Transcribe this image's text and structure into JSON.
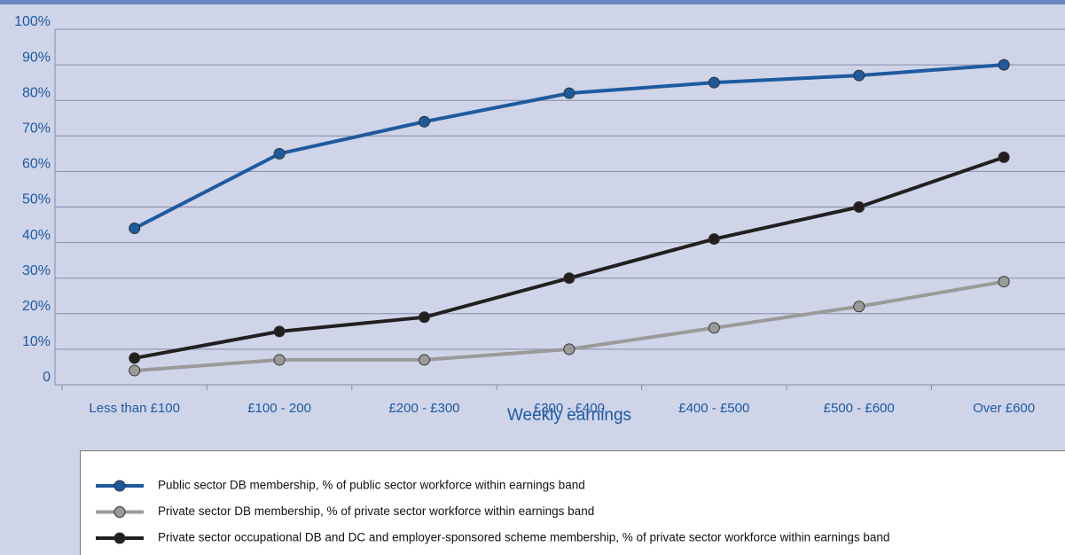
{
  "chart_data": {
    "type": "line",
    "x_label": "Weekly earnings",
    "categories": [
      "Less than £100",
      "£100 - 200",
      "£200 - £300",
      "£300 - £400",
      "£400 - £500",
      "£500 - £600",
      "Over £600"
    ],
    "series": [
      {
        "name": "Public sector DB membership, % of public sector workforce within earnings band",
        "color": "#1f5a9e",
        "values": [
          44,
          65,
          74,
          82,
          85,
          87,
          90
        ]
      },
      {
        "name": "Private sector DB membership, % of private sector workforce within earnings band",
        "color": "#9a9a9a",
        "values": [
          4,
          7,
          7,
          10,
          16,
          22,
          29
        ]
      },
      {
        "name": "Private sector occupational DB and DC and employer-sponsored scheme membership, % of private sector workforce within earnings band",
        "color": "#231f20",
        "values": [
          7.5,
          15,
          19,
          30,
          41,
          50,
          64
        ]
      }
    ],
    "ylim": [
      0,
      100
    ],
    "yticks": [
      0,
      {
        "value": 10,
        "label": "10%"
      },
      {
        "value": 20,
        "label": "20%"
      },
      {
        "value": 30,
        "label": "30%"
      },
      {
        "value": 40,
        "label": "40%"
      },
      {
        "value": 50,
        "label": "50%"
      },
      {
        "value": 60,
        "label": "60%"
      },
      {
        "value": 70,
        "label": "70%"
      },
      {
        "value": 80,
        "label": "80%"
      },
      {
        "value": 90,
        "label": "90%"
      },
      {
        "value": 100,
        "label": "100%"
      }
    ],
    "grid": true
  }
}
